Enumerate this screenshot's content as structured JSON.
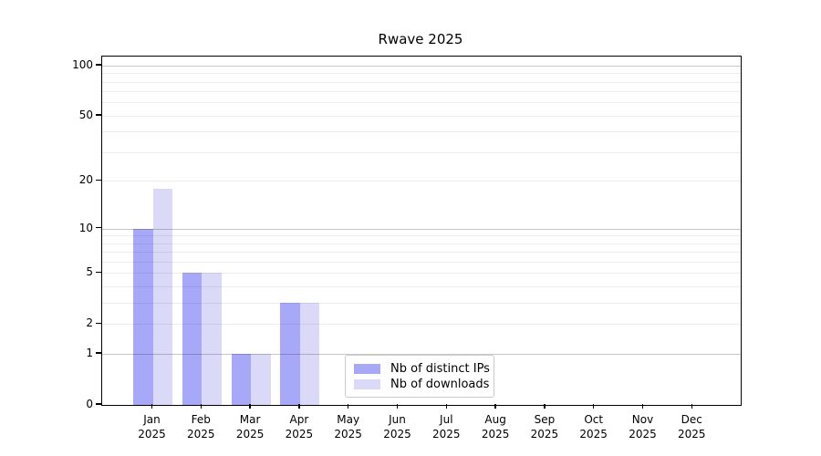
{
  "chart_data": {
    "type": "bar",
    "title": "Rwave 2025",
    "categories": [
      "Jan",
      "Feb",
      "Mar",
      "Apr",
      "May",
      "Jun",
      "Jul",
      "Aug",
      "Sep",
      "Oct",
      "Nov",
      "Dec"
    ],
    "category_year": "2025",
    "series": [
      {
        "name": "Nb of distinct IPs",
        "color": "#a8a8f8",
        "values": [
          10,
          5,
          1,
          3,
          0,
          0,
          0,
          0,
          0,
          0,
          0,
          0
        ]
      },
      {
        "name": "Nb of downloads",
        "color": "#dadaf8",
        "values": [
          18,
          5,
          1,
          3,
          0,
          0,
          0,
          0,
          0,
          0,
          0,
          0
        ]
      }
    ],
    "xlabel": "",
    "ylabel": "",
    "yscale": "log1p",
    "ylim": [
      0,
      113
    ],
    "yticks": [
      0,
      1,
      2,
      5,
      10,
      20,
      50,
      100
    ],
    "minor_gridlines": [
      2,
      3,
      4,
      5,
      6,
      7,
      8,
      9,
      20,
      30,
      40,
      50,
      60,
      70,
      80,
      90
    ],
    "major_gridlines": [
      1,
      10,
      100
    ],
    "grid": "on",
    "legend_position": "inside-bottom-center",
    "legend_items": [
      "Nb of distinct IPs",
      "Nb of downloads"
    ]
  }
}
